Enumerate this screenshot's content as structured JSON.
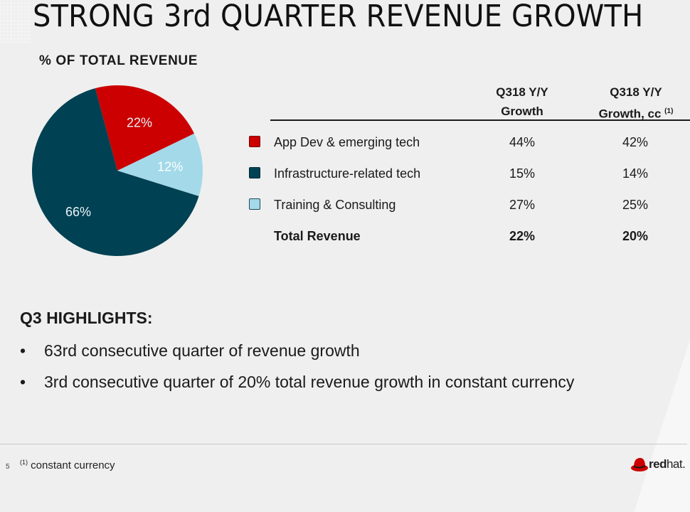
{
  "slide": {
    "title": "STRONG 3rd QUARTER REVENUE GROWTH",
    "page_number": "5"
  },
  "chart_data": {
    "type": "pie",
    "title": "% OF TOTAL REVENUE",
    "categories": [
      "App Dev & emerging tech",
      "Training & Consulting",
      "Infrastructure-related tech"
    ],
    "values": [
      22,
      12,
      66
    ],
    "labels": [
      "22%",
      "12%",
      "66%"
    ],
    "colors": [
      "#cc0000",
      "#a3d9e8",
      "#004153"
    ],
    "start_angle_deg": -15,
    "direction": "clockwise"
  },
  "table": {
    "headers": [
      {
        "line1": "Q318 Y/Y",
        "line2": "Growth",
        "sup": ""
      },
      {
        "line1": "Q318 Y/Y",
        "line2": "Growth, cc",
        "sup": "(1)"
      }
    ],
    "rows": [
      {
        "label": "App Dev & emerging tech",
        "swatch": "#cc0000",
        "growth": "44%",
        "growth_cc": "42%"
      },
      {
        "label": "Infrastructure-related tech",
        "swatch": "#004153",
        "growth": "15%",
        "growth_cc": "14%"
      },
      {
        "label": "Training & Consulting",
        "swatch": "#a3d9e8",
        "growth": "27%",
        "growth_cc": "25%"
      },
      {
        "label": "Total Revenue",
        "swatch": "",
        "growth": "22%",
        "growth_cc": "20%"
      }
    ]
  },
  "highlights": {
    "title": "Q3 HIGHLIGHTS:",
    "bullet_char": "•",
    "items": [
      "63rd consecutive quarter of revenue growth",
      "3rd consecutive quarter of 20% total revenue growth in constant currency"
    ]
  },
  "footer": {
    "footnote_marker": "(1)",
    "footnote_text": " constant currency",
    "logo_bold": "red",
    "logo_light": "hat."
  }
}
